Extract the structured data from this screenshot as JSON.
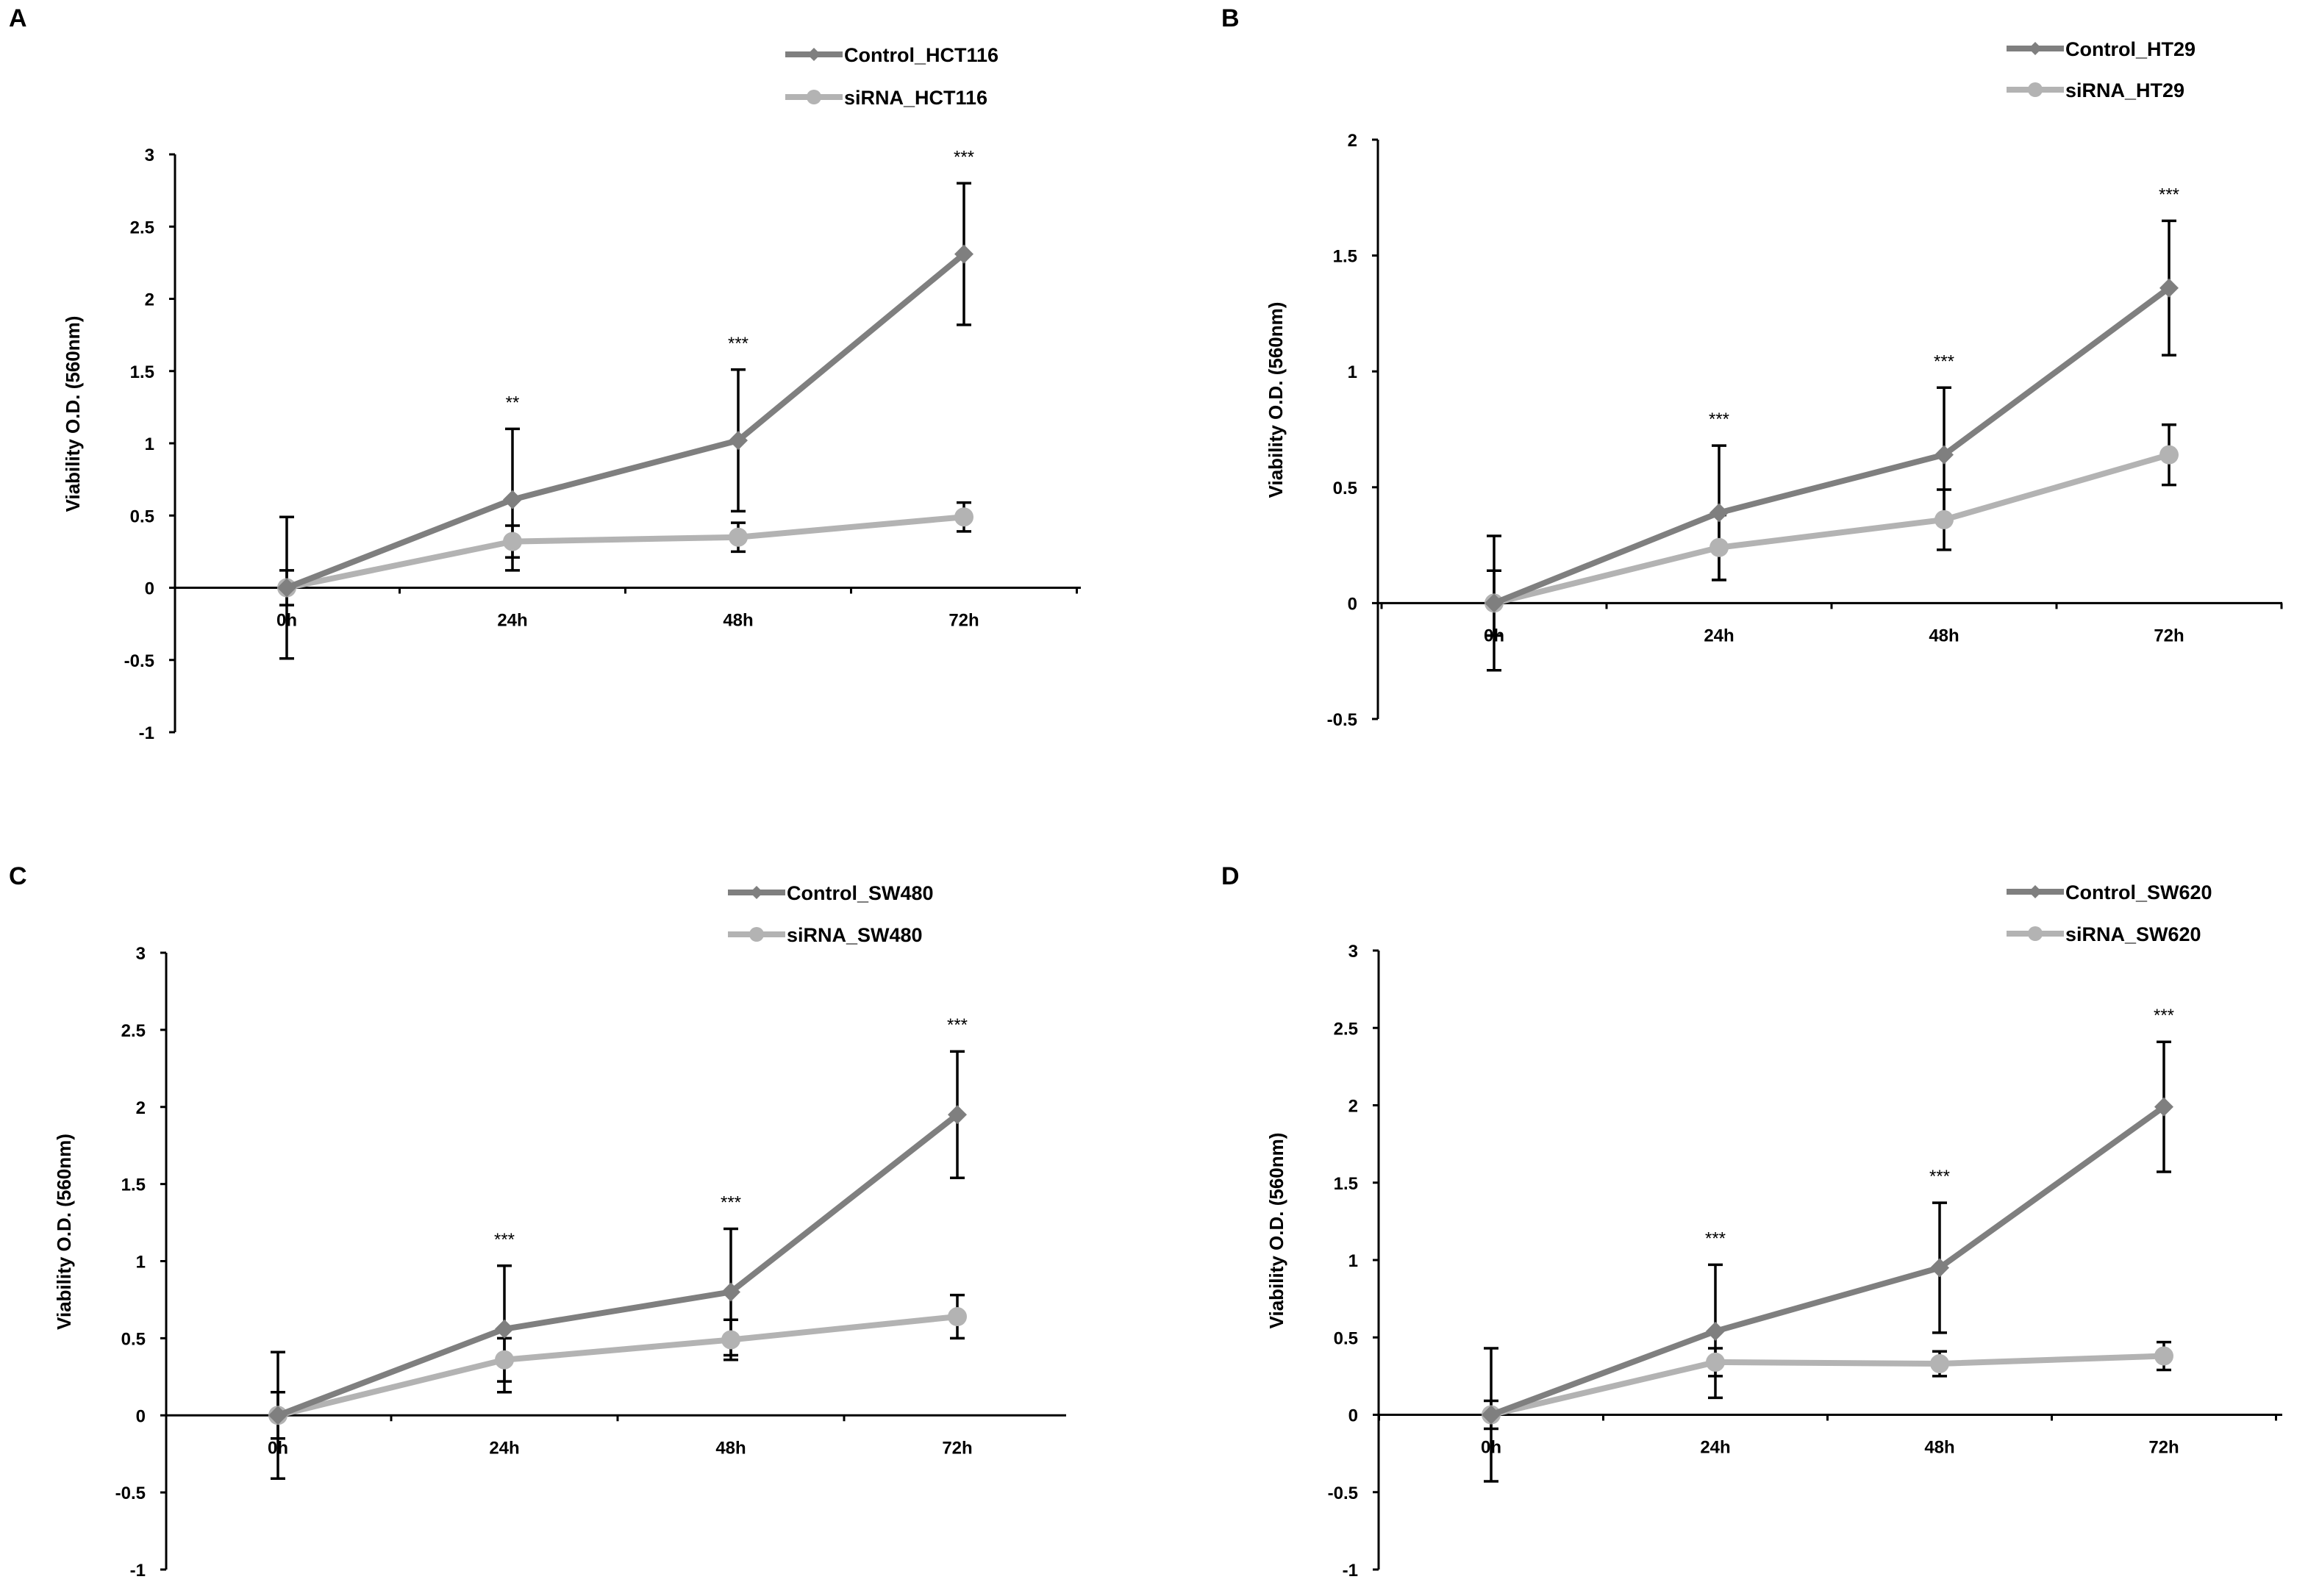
{
  "chart_data": [
    {
      "panel": "A",
      "type": "line",
      "categories": [
        "0h",
        "24h",
        "48h",
        "72h"
      ],
      "ylabel": "Viability  O.D. (560nm)",
      "yticks": [
        "-1",
        "-0.5",
        "0",
        "0.5",
        "1",
        "1.5",
        "2",
        "2.5",
        "3"
      ],
      "ylim": [
        -1,
        3
      ],
      "significance": [
        "",
        "**",
        "***",
        "***"
      ],
      "series": [
        {
          "name": "Control_HCT116",
          "values": [
            0,
            0.61,
            1.02,
            2.31
          ],
          "errors": [
            0.49,
            0.49,
            0.49,
            0.49
          ],
          "color": "#7f7f7f",
          "marker": "diamond"
        },
        {
          "name": "siRNA_HCT116",
          "values": [
            0,
            0.32,
            0.35,
            0.49
          ],
          "errors": [
            0.12,
            0.11,
            0.1,
            0.1
          ],
          "color": "#b3b3b3",
          "marker": "circle"
        }
      ]
    },
    {
      "panel": "B",
      "type": "line",
      "categories": [
        "0h",
        "24h",
        "48h",
        "72h"
      ],
      "ylabel": "Viability  O.D. (560nm)",
      "yticks": [
        "-0.5",
        "0",
        "0.5",
        "1",
        "1.5",
        "2"
      ],
      "ylim": [
        -0.5,
        2
      ],
      "significance": [
        "",
        "***",
        "***",
        "***"
      ],
      "series": [
        {
          "name": "Control_HT29",
          "values": [
            0,
            0.39,
            0.64,
            1.36
          ],
          "errors": [
            0.29,
            0.29,
            0.29,
            0.29
          ],
          "color": "#7f7f7f",
          "marker": "diamond"
        },
        {
          "name": "siRNA_HT29",
          "values": [
            0,
            0.24,
            0.36,
            0.64
          ],
          "errors": [
            0.14,
            0.14,
            0.13,
            0.13
          ],
          "color": "#b3b3b3",
          "marker": "circle"
        }
      ]
    },
    {
      "panel": "C",
      "type": "line",
      "categories": [
        "0h",
        "24h",
        "48h",
        "72h"
      ],
      "ylabel": "Viability  O.D. (560nm)",
      "yticks": [
        "-1",
        "-0.5",
        "0",
        "0.5",
        "1",
        "1.5",
        "2",
        "2.5",
        "3"
      ],
      "ylim": [
        -1,
        3
      ],
      "significance": [
        "",
        "***",
        "***",
        "***"
      ],
      "series": [
        {
          "name": "Control_SW480",
          "values": [
            0,
            0.56,
            0.8,
            1.95
          ],
          "errors": [
            0.41,
            0.41,
            0.41,
            0.41
          ],
          "color": "#7f7f7f",
          "marker": "diamond"
        },
        {
          "name": "siRNA_SW480",
          "values": [
            0,
            0.36,
            0.49,
            0.64
          ],
          "errors": [
            0.15,
            0.14,
            0.13,
            0.14
          ],
          "color": "#b3b3b3",
          "marker": "circle"
        }
      ]
    },
    {
      "panel": "D",
      "type": "line",
      "categories": [
        "0h",
        "24h",
        "48h",
        "72h"
      ],
      "ylabel": "Viability  O.D. (560nm)",
      "yticks": [
        "-1",
        "-0.5",
        "0",
        "0.5",
        "1",
        "1.5",
        "2",
        "2.5",
        "3"
      ],
      "ylim": [
        -1,
        3
      ],
      "significance": [
        "",
        "***",
        "***",
        "***"
      ],
      "series": [
        {
          "name": "Control_SW620",
          "values": [
            0,
            0.54,
            0.95,
            1.99
          ],
          "errors": [
            0.43,
            0.43,
            0.42,
            0.42
          ],
          "color": "#7f7f7f",
          "marker": "diamond"
        },
        {
          "name": "siRNA_SW620",
          "values": [
            0,
            0.34,
            0.33,
            0.38
          ],
          "errors": [
            0.09,
            0.09,
            0.08,
            0.09
          ],
          "color": "#b3b3b3",
          "marker": "circle"
        }
      ]
    }
  ]
}
